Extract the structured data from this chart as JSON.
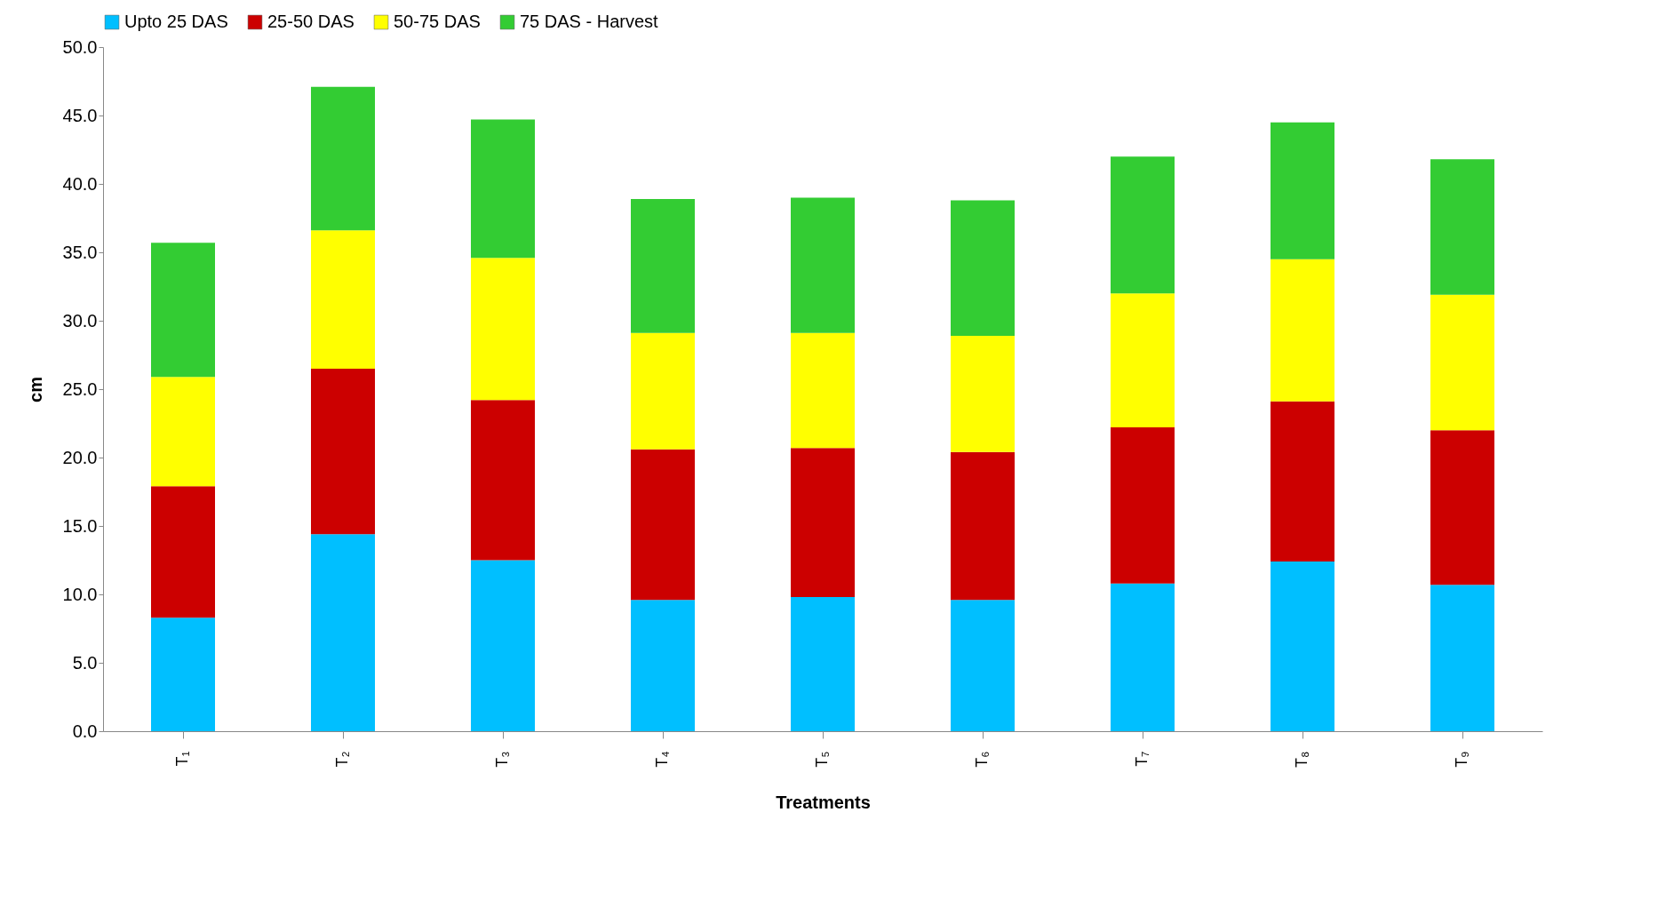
{
  "chart_data": {
    "type": "bar",
    "stacked": true,
    "xlabel": "Treatments",
    "ylabel": "cm",
    "categories": [
      "T₁",
      "T₂",
      "T₃",
      "T₄",
      "T₅",
      "T₆",
      "T₇",
      "T₈",
      "T₉"
    ],
    "series": [
      {
        "name": "Upto 25 DAS",
        "color": "#00bfff",
        "values": [
          8.3,
          14.4,
          12.5,
          9.6,
          9.8,
          9.6,
          10.8,
          12.4,
          10.7
        ]
      },
      {
        "name": "25-50 DAS",
        "color": "#cc0000",
        "values": [
          9.6,
          12.1,
          11.7,
          11.0,
          10.9,
          10.8,
          11.4,
          11.7,
          11.3
        ]
      },
      {
        "name": "50-75 DAS",
        "color": "#ffff00",
        "values": [
          8.0,
          10.1,
          10.4,
          8.5,
          8.4,
          8.5,
          9.8,
          10.4,
          9.9
        ]
      },
      {
        "name": "75 DAS - Harvest",
        "color": "#33cc33",
        "values": [
          9.8,
          10.5,
          10.1,
          9.8,
          9.9,
          9.9,
          10.0,
          10.0,
          9.9
        ]
      }
    ],
    "ylim": [
      0,
      50
    ],
    "yticks": [
      {
        "value": 0,
        "label": "0.0"
      },
      {
        "value": 5,
        "label": "5.0"
      },
      {
        "value": 10,
        "label": "10.0"
      },
      {
        "value": 15,
        "label": "15.0"
      },
      {
        "value": 20,
        "label": "20.0"
      },
      {
        "value": 25,
        "label": "25.0"
      },
      {
        "value": 30,
        "label": "30.0"
      },
      {
        "value": 35,
        "label": "35.0"
      },
      {
        "value": 40,
        "label": "40.0"
      },
      {
        "value": 45,
        "label": "45.0"
      },
      {
        "value": 50,
        "label": "50.0"
      }
    ],
    "grid": false,
    "legend": "top"
  }
}
